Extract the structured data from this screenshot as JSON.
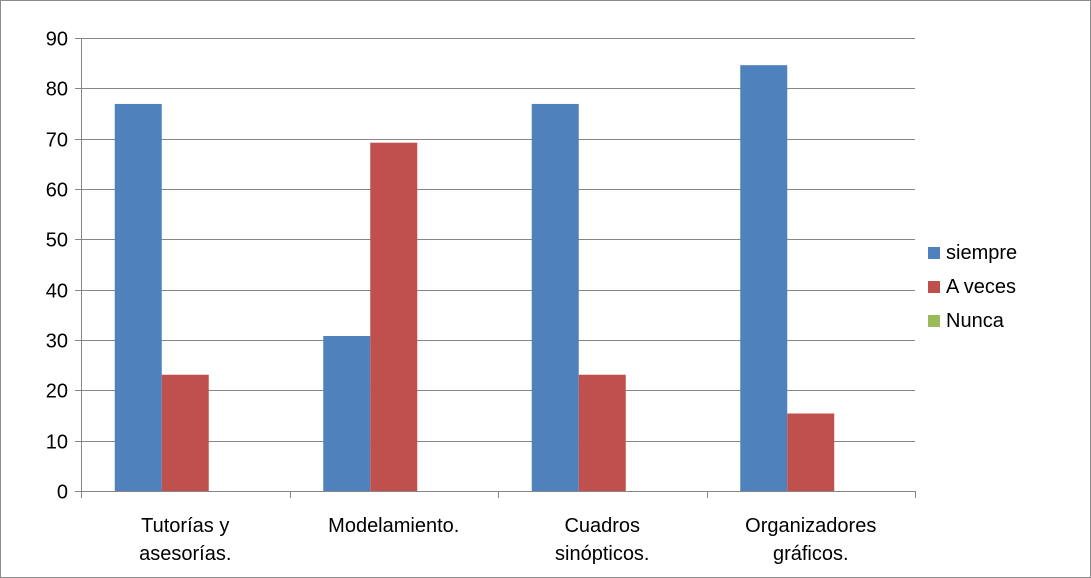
{
  "chart_data": {
    "type": "bar",
    "categories": [
      [
        "Tutorías y",
        "asesorías."
      ],
      [
        "Modelamiento."
      ],
      [
        "Cuadros",
        "sinópticos."
      ],
      [
        "Organizadores",
        "gráficos."
      ]
    ],
    "series": [
      {
        "name": "siempre",
        "values": [
          76.9,
          30.8,
          76.9,
          84.6
        ],
        "color": "#4F81BD"
      },
      {
        "name": "A veces",
        "values": [
          23.1,
          69.2,
          23.1,
          15.4
        ],
        "color": "#C0504D"
      },
      {
        "name": "Nunca",
        "values": [
          0,
          0,
          0,
          0
        ],
        "color": "#9BBB59"
      }
    ],
    "y_ticks": [
      "0",
      "10",
      "20",
      "30",
      "40",
      "50",
      "60",
      "70",
      "80",
      "90"
    ],
    "ylim": [
      0,
      90
    ],
    "grid": true,
    "legend_position": "right",
    "title": "",
    "xlabel": "",
    "ylabel": ""
  }
}
